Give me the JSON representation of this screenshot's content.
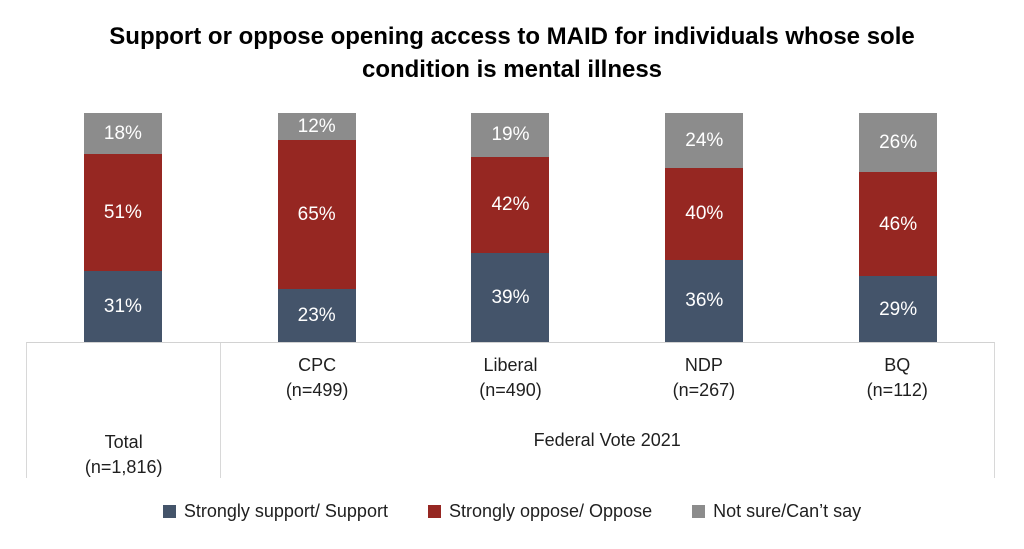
{
  "title": {
    "full": "Support or oppose opening access to MAID for individuals whose sole condition is mental illness",
    "line1": "Support or oppose opening access to MAID for individuals whose sole",
    "line2": "condition is mental illness"
  },
  "chart_data": {
    "type": "bar",
    "subtype": "100%-stacked-column",
    "title": "Support or oppose opening access to MAID for individuals whose sole condition is mental illness",
    "categories": [
      "Total",
      "CPC",
      "Liberal",
      "NDP",
      "BQ"
    ],
    "category_sublabels": [
      "(n=1,816)",
      "(n=499)",
      "(n=490)",
      "(n=267)",
      "(n=112)"
    ],
    "x_axis_group_label": "Federal Vote 2021",
    "value_suffix": "%",
    "ylim": [
      0,
      100
    ],
    "grid": false,
    "legend_position": "bottom",
    "series": [
      {
        "key": "support",
        "name": "Strongly support/ Support",
        "color": "#44546A",
        "values": [
          31,
          23,
          39,
          36,
          29
        ]
      },
      {
        "key": "oppose",
        "name": "Strongly oppose/ Oppose",
        "color": "#962722",
        "values": [
          51,
          65,
          42,
          40,
          46
        ]
      },
      {
        "key": "not-sure",
        "name": "Not sure/Can’t say",
        "color": "#8C8C8C",
        "values": [
          18,
          12,
          19,
          24,
          26
        ]
      }
    ]
  },
  "colors": {
    "support": "#44546A",
    "oppose": "#962722",
    "not_sure": "#8C8C8C",
    "table_border": "#D8D8D8",
    "value_label": "#FFFFFF",
    "text": "#1F1F1F"
  }
}
